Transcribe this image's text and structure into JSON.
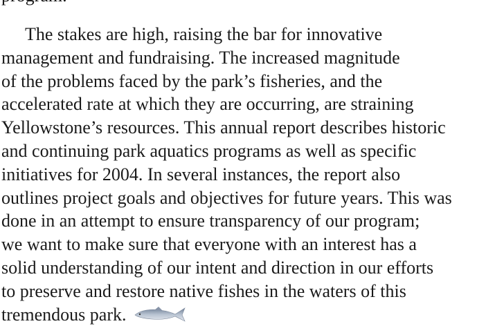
{
  "previous_line": "program.",
  "paragraph_lines": [
    "The stakes are high, raising the bar for innovative",
    "management and fundraising. The increased magnitude",
    "of the problems faced by the park’s fisheries, and the",
    "accelerated rate at which they are occurring, are straining",
    "Yellowstone’s resources. This annual report describes historic",
    "and continuing park aquatics programs as well as specific",
    "initiatives for 2004. In several instances, the report also",
    "outlines project goals and objectives for future years. This was",
    "done in an attempt to ensure transparency of our program;",
    "we want to make sure that everyone with an interest has a",
    "solid understanding of our intent and direction in our efforts",
    "to preserve and restore native fishes in the waters of this",
    "tremendous park."
  ]
}
